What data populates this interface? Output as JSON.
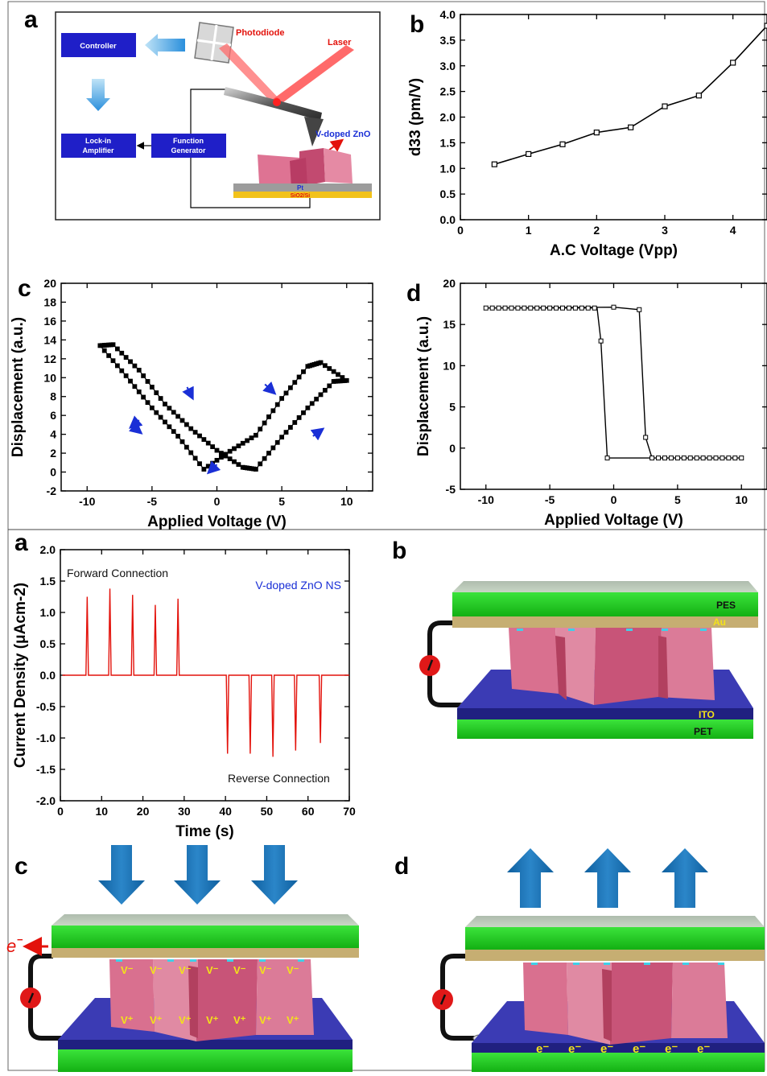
{
  "top_figure": {
    "panel_a": {
      "letter": "a",
      "controller": "Controller",
      "lockin_l1": "Lock-in",
      "lockin_l2": "Amplifier",
      "funcgen_l1": "Function",
      "funcgen_l2": "Generator",
      "photodiode": "Photodiode",
      "laser": "Laser",
      "sample": "V-doped ZnO",
      "pt": "Pt",
      "substrate": "SiO2/Si"
    },
    "panel_b": {
      "letter": "b"
    },
    "panel_c": {
      "letter": "c"
    },
    "panel_d": {
      "letter": "d"
    }
  },
  "bottom_figure": {
    "panel_a": {
      "letter": "a"
    },
    "panel_b": {
      "letter": "b",
      "pes": "PES",
      "au": "Au",
      "ito": "ITO",
      "pet": "PET"
    },
    "panel_c": {
      "letter": "c",
      "electron": "e",
      "electron_sup": "−",
      "v_minus": [
        "V⁻",
        "V⁻",
        "V⁻",
        "V⁻",
        "V⁻",
        "V⁻",
        "V⁻"
      ],
      "v_plus": [
        "V⁺",
        "V⁺",
        "V⁺",
        "V⁺",
        "V⁺",
        "V⁺",
        "V⁺"
      ]
    },
    "panel_d": {
      "letter": "d",
      "e_minus": [
        "e⁻",
        "e⁻",
        "e⁻",
        "e⁻",
        "e⁻",
        "e⁻"
      ]
    }
  },
  "chart_data": [
    {
      "id": "top-b",
      "type": "line",
      "xlabel": "A.C Voltage (Vpp)",
      "ylabel": "d33 (pm/V)",
      "xlim": [
        0,
        4.5
      ],
      "ylim": [
        0,
        4.0
      ],
      "xticks": [
        0,
        1,
        2,
        3,
        4
      ],
      "yticks": [
        0.0,
        0.5,
        1.0,
        1.5,
        2.0,
        2.5,
        3.0,
        3.5,
        4.0
      ],
      "xtick_labels": [
        "0",
        "1",
        "2",
        "3",
        "4"
      ],
      "ytick_labels": [
        "0.0",
        "0.5",
        "1.0",
        "1.5",
        "2.0",
        "2.5",
        "3.0",
        "3.5",
        "4.0"
      ],
      "x": [
        0.5,
        1.0,
        1.5,
        2.0,
        2.5,
        3.0,
        3.5,
        4.0,
        4.5
      ],
      "y": [
        1.08,
        1.28,
        1.47,
        1.7,
        1.8,
        2.21,
        2.42,
        3.06,
        3.78
      ]
    },
    {
      "id": "top-c",
      "type": "scatter",
      "xlabel": "Applied Voltage (V)",
      "ylabel": "Displacement (a.u.)",
      "xlim": [
        -12,
        12
      ],
      "ylim": [
        -2,
        20
      ],
      "xticks": [
        -10,
        -5,
        0,
        5,
        10
      ],
      "yticks": [
        -2,
        0,
        2,
        4,
        6,
        8,
        10,
        12,
        14,
        16,
        18,
        20
      ],
      "xtick_labels": [
        "-10",
        "-5",
        "0",
        "5",
        "10"
      ],
      "ytick_labels": [
        "-2",
        "0",
        "2",
        "4",
        "6",
        "8",
        "10",
        "12",
        "14",
        "16",
        "18",
        "20"
      ],
      "loop": [
        [
          10,
          9.7
        ],
        [
          8,
          11.6
        ],
        [
          7,
          11.2
        ],
        [
          5,
          7.8
        ],
        [
          3,
          3.9
        ],
        [
          1,
          2.2
        ],
        [
          -1,
          0.3
        ],
        [
          -3,
          3.8
        ],
        [
          -5,
          6.8
        ],
        [
          -7,
          10.2
        ],
        [
          -9,
          13.4
        ],
        [
          -8,
          13.5
        ],
        [
          -6,
          10.8
        ],
        [
          -4,
          7.2
        ],
        [
          -2,
          4.6
        ],
        [
          0,
          2.3
        ],
        [
          2,
          0.5
        ],
        [
          3,
          0.3
        ],
        [
          5,
          3.7
        ],
        [
          7,
          6.8
        ],
        [
          9,
          9.6
        ],
        [
          10,
          9.7
        ]
      ],
      "arrows": [
        [
          -2.3,
          9.0,
          -1.9,
          7.9
        ],
        [
          3.7,
          9.3,
          4.4,
          8.4
        ],
        [
          -6.6,
          5.0,
          -5.9,
          4.2
        ],
        [
          -6,
          5.5,
          -6.6,
          4.8
        ],
        [
          7.4,
          3.8,
          8.1,
          4.5
        ],
        [
          0,
          0.8,
          -0.6,
          0.0
        ]
      ]
    },
    {
      "id": "top-d",
      "type": "line",
      "xlabel": "Applied Voltage (V)",
      "ylabel": "Displacement (a.u.)",
      "xlim": [
        -12,
        12
      ],
      "ylim": [
        -5,
        20
      ],
      "xticks": [
        -10,
        -5,
        0,
        5,
        10
      ],
      "yticks": [
        -5,
        0,
        5,
        10,
        15,
        20
      ],
      "xtick_labels": [
        "-10",
        "-5",
        "0",
        "5",
        "10"
      ],
      "ytick_labels": [
        "-5",
        "0",
        "5",
        "10",
        "15",
        "20"
      ],
      "loop": [
        [
          -10,
          17
        ],
        [
          -1.3,
          17
        ],
        [
          -1.3,
          17
        ],
        [
          -1,
          13
        ],
        [
          -0.5,
          -1.2
        ],
        [
          10,
          -1.2
        ],
        [
          3,
          -1.2
        ],
        [
          2.5,
          1.3
        ],
        [
          2,
          16.8
        ],
        [
          0,
          17.1
        ],
        [
          -10,
          17
        ]
      ]
    },
    {
      "id": "bottom-a",
      "type": "line",
      "xlabel": "Time (s)",
      "ylabel": "Current Density (μAcm-2)",
      "xlim": [
        0,
        70
      ],
      "ylim": [
        -2.0,
        2.0
      ],
      "xticks": [
        0,
        10,
        20,
        30,
        40,
        50,
        60,
        70
      ],
      "yticks": [
        -2.0,
        -1.5,
        -1.0,
        -0.5,
        0.0,
        0.5,
        1.0,
        1.5,
        2.0
      ],
      "xtick_labels": [
        "0",
        "10",
        "20",
        "30",
        "40",
        "50",
        "60",
        "70"
      ],
      "ytick_labels": [
        "-2.0",
        "-1.5",
        "-1.0",
        "-0.5",
        "0.0",
        "0.5",
        "1.0",
        "1.5",
        "2.0"
      ],
      "series": [
        {
          "name": "V-doped ZnO NS"
        }
      ],
      "annotations": [
        "Forward Connection",
        "Reverse Connection"
      ],
      "forward_peaks": [
        [
          6.5,
          1.25
        ],
        [
          12,
          1.38
        ],
        [
          17.5,
          1.28
        ],
        [
          23,
          1.12
        ],
        [
          28.5,
          1.22
        ]
      ],
      "reverse_peaks": [
        [
          40.5,
          -1.25
        ],
        [
          46,
          -1.25
        ],
        [
          51.5,
          -1.3
        ],
        [
          57,
          -1.2
        ],
        [
          63,
          -1.08
        ]
      ]
    }
  ]
}
